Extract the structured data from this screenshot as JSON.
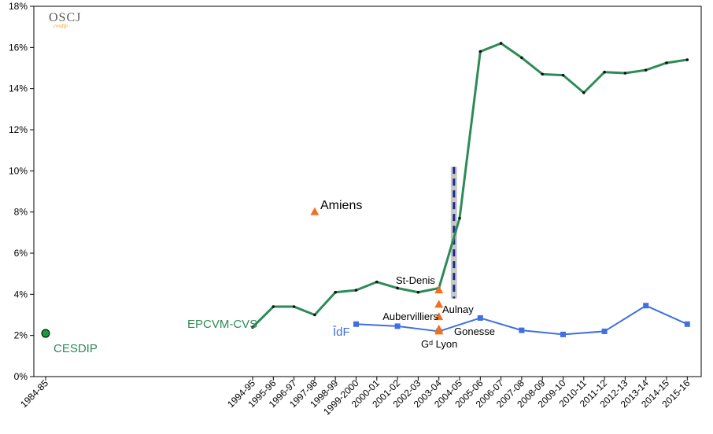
{
  "chart_data": {
    "type": "line",
    "logo": {
      "text": "OSCJ",
      "subtext": "cesdip",
      "color": "#e8a317"
    },
    "categories": [
      "1984-85",
      "1994-95",
      "1995-96",
      "1996-97",
      "1997-98",
      "1998-99",
      "1999-2000",
      "2000-01",
      "2001-02",
      "2002-03",
      "2003-04",
      "2004-05",
      "2005-06",
      "2006-07",
      "2007-08",
      "2008-09",
      "2009-10",
      "2010-11",
      "2011-12",
      "2012-13",
      "2013-14",
      "2014-15",
      "2015-16"
    ],
    "ylim": [
      0,
      18
    ],
    "yticks": [
      "0%",
      "2%",
      "4%",
      "6%",
      "8%",
      "10%",
      "12%",
      "14%",
      "16%",
      "18%"
    ],
    "series": [
      {
        "name": "EPCVM-CVS",
        "color": "#2e8b57",
        "marker": "dot",
        "x": [
          "1994-95",
          "1995-96",
          "1996-97",
          "1997-98",
          "1998-99",
          "1999-2000",
          "2000-01",
          "2001-02",
          "2002-03",
          "2003-04",
          "2004-05",
          "2005-06",
          "2006-07",
          "2007-08",
          "2008-09",
          "2009-10",
          "2010-11",
          "2011-12",
          "2012-13",
          "2013-14",
          "2014-15",
          "2015-16"
        ],
        "values": [
          2.4,
          3.4,
          3.4,
          3.0,
          4.1,
          4.2,
          4.6,
          4.3,
          4.1,
          4.3,
          7.7,
          15.8,
          16.2,
          15.5,
          14.7,
          14.65,
          13.8,
          14.8,
          14.75,
          14.9,
          15.25,
          15.4
        ]
      },
      {
        "name": "ÎdF",
        "color": "#3f6fe0",
        "marker": "square",
        "x": [
          "1999-2000",
          "2001-02",
          "2003-04",
          "2005-06",
          "2007-08",
          "2009-10",
          "2011-12",
          "2013-14",
          "2015-16"
        ],
        "values": [
          2.55,
          2.45,
          2.2,
          2.85,
          2.25,
          2.05,
          2.2,
          3.45,
          2.55
        ]
      }
    ],
    "points": [
      {
        "name": "CESDIP",
        "x": "1984-85",
        "value": 2.1,
        "color": "#2e8b57",
        "marker": "circle"
      },
      {
        "name": "Amiens",
        "x": "1997-98",
        "value": 8.0,
        "color": "#f07020",
        "marker": "triangle"
      },
      {
        "name": "St-Denis",
        "x": "2003-04",
        "value": 4.2,
        "color": "#f07020",
        "marker": "triangle"
      },
      {
        "name": "Aulnay",
        "x": "2003-04",
        "value": 3.5,
        "color": "#f07020",
        "marker": "triangle"
      },
      {
        "name": "Aubervilliers",
        "x": "2003-04",
        "value": 2.9,
        "color": "#f07020",
        "marker": "triangle"
      },
      {
        "name": "Gonesse",
        "x": "2003-04",
        "value": 2.3,
        "color": "#f07020",
        "marker": "triangle"
      },
      {
        "name": "Gᵈ Lyon",
        "x": "2003-04",
        "value": 2.2,
        "color": "#f07020",
        "marker": "triangle"
      }
    ],
    "series_labels": {
      "EPCVM-CVS": "EPCVM-CVS",
      "ÎdF": "ÎdF",
      "CESDIP": "CESDIP"
    },
    "break_marker": {
      "x_between": [
        "2003-04",
        "2004-05"
      ],
      "from": 3.8,
      "to": 10.2,
      "color": "#1a2a8a"
    },
    "grid": false
  }
}
